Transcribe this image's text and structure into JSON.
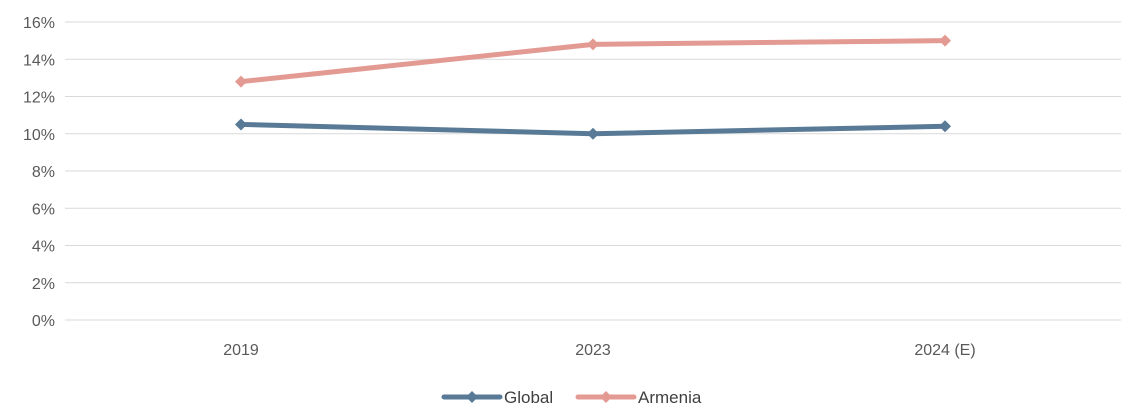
{
  "chart_data": {
    "type": "line",
    "categories": [
      "2019",
      "2023",
      "2024 (E)"
    ],
    "series": [
      {
        "name": "Global",
        "values": [
          10.5,
          10.0,
          10.4
        ],
        "color": "#597A96"
      },
      {
        "name": "Armenia",
        "values": [
          12.8,
          14.8,
          15.0
        ],
        "color": "#E39A93"
      }
    ],
    "y_ticks": [
      "0%",
      "2%",
      "4%",
      "6%",
      "8%",
      "10%",
      "12%",
      "14%",
      "16%"
    ],
    "ylim": [
      0,
      16
    ],
    "grid": true,
    "legend_position": "bottom",
    "marker": "diamond",
    "gridline_color": "#D9D9D9"
  }
}
